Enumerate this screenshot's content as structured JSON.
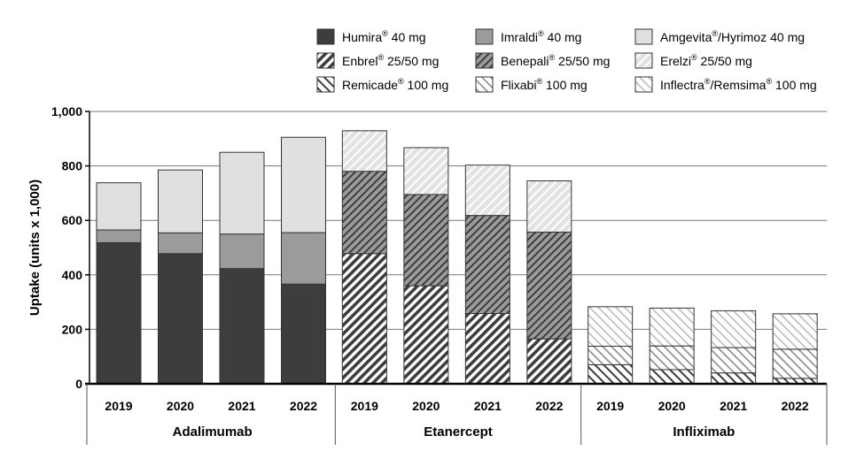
{
  "chart_data": {
    "type": "bar",
    "stacked": true,
    "ylabel": "Uptake (units x 1,000)",
    "ylim": [
      0,
      1000
    ],
    "yticks": [
      0,
      200,
      400,
      600,
      800,
      1000
    ],
    "ytick_labels": [
      "0",
      "200",
      "400",
      "600",
      "800",
      "1,000"
    ],
    "grid": true,
    "legend_position": "top",
    "groups": [
      {
        "name": "Adalimumab",
        "categories": [
          "2019",
          "2020",
          "2021",
          "2022"
        ],
        "series": [
          {
            "name": "Humira® 40 mg",
            "pattern": "solid-dark",
            "values": [
              518,
              478,
              423,
              366
            ]
          },
          {
            "name": "Imraldi® 40 mg",
            "pattern": "solid-mid",
            "values": [
              47,
              76,
              127,
              189
            ]
          },
          {
            "name": "Amgevita®/Hyrimoz 40 mg",
            "pattern": "solid-light",
            "values": [
              173,
              231,
              300,
              350
            ]
          }
        ]
      },
      {
        "name": "Etanercept",
        "categories": [
          "2019",
          "2020",
          "2021",
          "2022"
        ],
        "series": [
          {
            "name": "Enbrel® 25/50 mg",
            "pattern": "hatch-dark",
            "values": [
              478,
              360,
              258,
              165
            ]
          },
          {
            "name": "Benepali® 25/50 mg",
            "pattern": "hatch-mid",
            "values": [
              302,
              335,
              360,
              392
            ]
          },
          {
            "name": "Erelzi® 25/50 mg",
            "pattern": "hatch-light",
            "values": [
              149,
              172,
              185,
              188
            ]
          }
        ]
      },
      {
        "name": "Infliximab",
        "categories": [
          "2019",
          "2020",
          "2021",
          "2022"
        ],
        "series": [
          {
            "name": "Remicade® 100 mg",
            "pattern": "back-dark",
            "values": [
              70,
              52,
              40,
              20
            ]
          },
          {
            "name": "Flixabi® 100 mg",
            "pattern": "back-mid",
            "values": [
              68,
              87,
              93,
              107
            ]
          },
          {
            "name": "Inflectra®/Remsima® 100 mg",
            "pattern": "back-light",
            "values": [
              145,
              139,
              135,
              130
            ]
          }
        ]
      }
    ],
    "legend": [
      {
        "name": "Humira",
        "suffix": " 40 mg",
        "pattern": "solid-dark"
      },
      {
        "name": "Imraldi",
        "suffix": " 40 mg",
        "pattern": "solid-mid"
      },
      {
        "name": "Amgevita",
        "suffix": "/Hyrimoz 40 mg",
        "pattern": "solid-light"
      },
      {
        "name": "Enbrel",
        "suffix": " 25/50 mg",
        "pattern": "hatch-dark"
      },
      {
        "name": "Benepali",
        "suffix": " 25/50 mg",
        "pattern": "hatch-mid"
      },
      {
        "name": "Erelzi",
        "suffix": " 25/50 mg",
        "pattern": "hatch-light"
      },
      {
        "name": "Remicade",
        "suffix": " 100 mg",
        "pattern": "back-dark"
      },
      {
        "name": "Flixabi",
        "suffix": " 100 mg",
        "pattern": "back-mid"
      },
      {
        "name": "Inflectra",
        "mid": "/Remsima",
        "suffix": " 100 mg",
        "pattern": "back-light"
      }
    ],
    "colors": {
      "solid_dark": "#3d3d3d",
      "solid_mid": "#9b9b9b",
      "solid_light": "#e0e0e0",
      "hatch_line": "#3d3d3d",
      "gridline": "#7a7a7a"
    }
  }
}
